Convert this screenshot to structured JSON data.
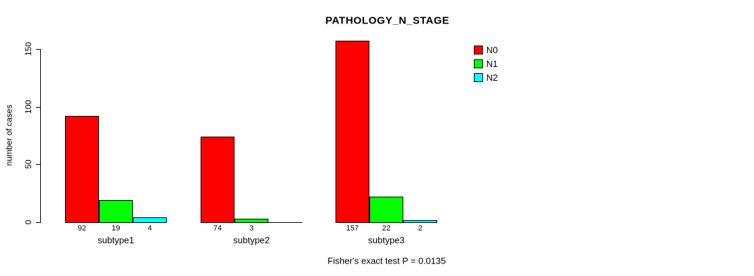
{
  "chart_data": {
    "type": "bar",
    "title": "PATHOLOGY_N_STAGE",
    "xlabel": "",
    "ylabel": "number of cases",
    "ylim": [
      0,
      150
    ],
    "yticks": [
      0,
      50,
      100,
      150
    ],
    "grid": false,
    "legend_position": "top-right",
    "categories": [
      "subtype1",
      "subtype2",
      "subtype3"
    ],
    "series": [
      {
        "name": "N0",
        "color": "#ff0000",
        "values": [
          92,
          74,
          157
        ]
      },
      {
        "name": "N1",
        "color": "#00ff00",
        "values": [
          19,
          3,
          22
        ]
      },
      {
        "name": "N2",
        "color": "#00ffff",
        "values": [
          4,
          0,
          2
        ]
      }
    ],
    "bar_value_labels_shown": true,
    "zero_value_labels_hidden": true,
    "annotation": "Fisher's exact test P = 0.0135"
  },
  "colors": {
    "background": "#ffffff",
    "text": "#000000",
    "bar_border": "#000000",
    "axis": "#000000"
  }
}
